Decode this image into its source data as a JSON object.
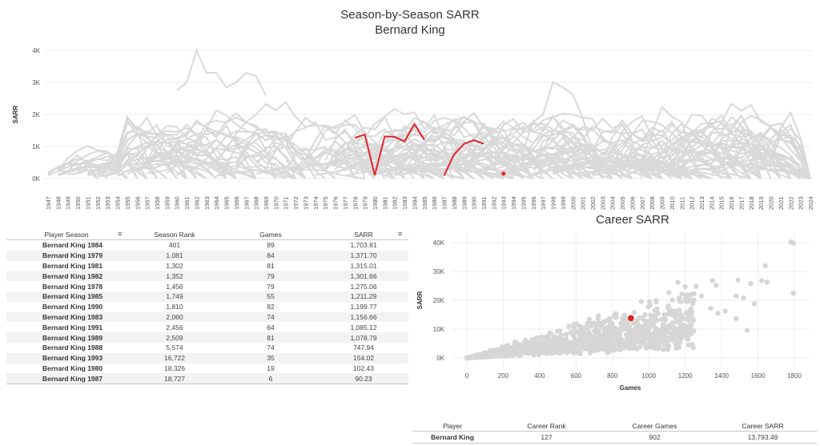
{
  "titles": {
    "main": "Season-by-Season SARR",
    "player": "Bernard King",
    "career": "Career SARR"
  },
  "colors": {
    "highlight": "#e2222b",
    "background_lines": "#d9d9d9",
    "grid": "#eeeeee"
  },
  "chart_data": [
    {
      "type": "line",
      "title": "Season-by-Season SARR",
      "subtitle": "Bernard King",
      "ylabel": "SARR",
      "xlabel": "",
      "ylim": [
        -200,
        4100
      ],
      "yticks": [
        0,
        1000,
        2000,
        3000,
        4000
      ],
      "ytick_labels": [
        "0K",
        "1K",
        "2K",
        "3K",
        "4K"
      ],
      "x_start": 1947,
      "x_end": 2024,
      "grid": true,
      "highlight_series": {
        "name": "Bernard King",
        "segments": [
          {
            "x": [
              1978,
              1979,
              1980,
              1981,
              1982,
              1983,
              1984,
              1985
            ],
            "y": [
              1275.06,
              1371.7,
              102.43,
              1315.01,
              1301.66,
              1156.66,
              1703.81,
              1211.29
            ]
          },
          {
            "x": [
              1987,
              1988,
              1989,
              1990,
              1991
            ],
            "y": [
              90.23,
              747.94,
              1078.79,
              1199.77,
              1085.12
            ]
          },
          {
            "x": [
              1993
            ],
            "y": [
              154.02
            ]
          }
        ]
      }
    },
    {
      "type": "scatter",
      "title": "Career SARR",
      "xlabel": "Games",
      "ylabel": "SARR",
      "xlim": [
        -60,
        1850
      ],
      "ylim": [
        -1500,
        42000
      ],
      "xticks": [
        0,
        200,
        400,
        600,
        800,
        1000,
        1200,
        1400,
        1600,
        1800
      ],
      "yticks": [
        0,
        10000,
        20000,
        30000,
        40000
      ],
      "ytick_labels": [
        "0K",
        "10K",
        "20K",
        "30K",
        "40K"
      ],
      "grid": true,
      "highlight_point": {
        "name": "Bernard King",
        "x": 902,
        "y": 13793.49
      },
      "outlier_points": [
        {
          "x": 1780,
          "y": 40200
        },
        {
          "x": 1795,
          "y": 39800
        },
        {
          "x": 1795,
          "y": 22500
        },
        {
          "x": 1640,
          "y": 32000
        },
        {
          "x": 1560,
          "y": 25800
        },
        {
          "x": 1620,
          "y": 26800
        },
        {
          "x": 1650,
          "y": 26300
        },
        {
          "x": 1580,
          "y": 18800
        },
        {
          "x": 1490,
          "y": 27000
        },
        {
          "x": 1350,
          "y": 26800
        },
        {
          "x": 1370,
          "y": 25200
        },
        {
          "x": 1480,
          "y": 21500
        },
        {
          "x": 1520,
          "y": 20800
        },
        {
          "x": 1540,
          "y": 9600
        },
        {
          "x": 1480,
          "y": 13600
        },
        {
          "x": 1260,
          "y": 24800
        },
        {
          "x": 1200,
          "y": 24700
        },
        {
          "x": 1220,
          "y": 21800
        },
        {
          "x": 1160,
          "y": 26200
        },
        {
          "x": 1110,
          "y": 22700
        },
        {
          "x": 1290,
          "y": 21500
        },
        {
          "x": 1420,
          "y": 16300
        },
        {
          "x": 1380,
          "y": 15500
        },
        {
          "x": 1340,
          "y": 17200
        },
        {
          "x": 1150,
          "y": 13500
        },
        {
          "x": 1230,
          "y": 11000
        },
        {
          "x": 1040,
          "y": 19400
        },
        {
          "x": 920,
          "y": 15800
        },
        {
          "x": 820,
          "y": 14000
        },
        {
          "x": 1100,
          "y": 9000
        }
      ]
    }
  ],
  "season_table": {
    "headers": [
      "Player Season",
      "Season Rank",
      "Games",
      "SARR"
    ],
    "rows": [
      [
        "Bernard King 1984",
        "401",
        "89",
        "1,703.81"
      ],
      [
        "Bernard King 1979",
        "1,081",
        "84",
        "1,371.70"
      ],
      [
        "Bernard King 1981",
        "1,302",
        "81",
        "1,315.01"
      ],
      [
        "Bernard King 1982",
        "1,352",
        "79",
        "1,301.66"
      ],
      [
        "Bernard King 1978",
        "1,456",
        "79",
        "1,275.06"
      ],
      [
        "Bernard King 1985",
        "1,749",
        "55",
        "1,211.29"
      ],
      [
        "Bernard King 1990",
        "1,810",
        "82",
        "1,199.77"
      ],
      [
        "Bernard King 1983",
        "2,060",
        "74",
        "1,156.66"
      ],
      [
        "Bernard King 1991",
        "2,456",
        "64",
        "1,085.12"
      ],
      [
        "Bernard King 1989",
        "2,509",
        "81",
        "1,078.79"
      ],
      [
        "Bernard King 1988",
        "5,574",
        "74",
        "747.94"
      ],
      [
        "Bernard King 1993",
        "16,722",
        "35",
        "154.02"
      ],
      [
        "Bernard King 1980",
        "18,326",
        "19",
        "102.43"
      ],
      [
        "Bernard King 1987",
        "18,727",
        "6",
        "90.23"
      ]
    ]
  },
  "career_table": {
    "headers": [
      "Player",
      "Career Rank",
      "Career Games",
      "Career SARR"
    ],
    "row": [
      "Bernard King",
      "127",
      "902",
      "13,793.49"
    ]
  }
}
